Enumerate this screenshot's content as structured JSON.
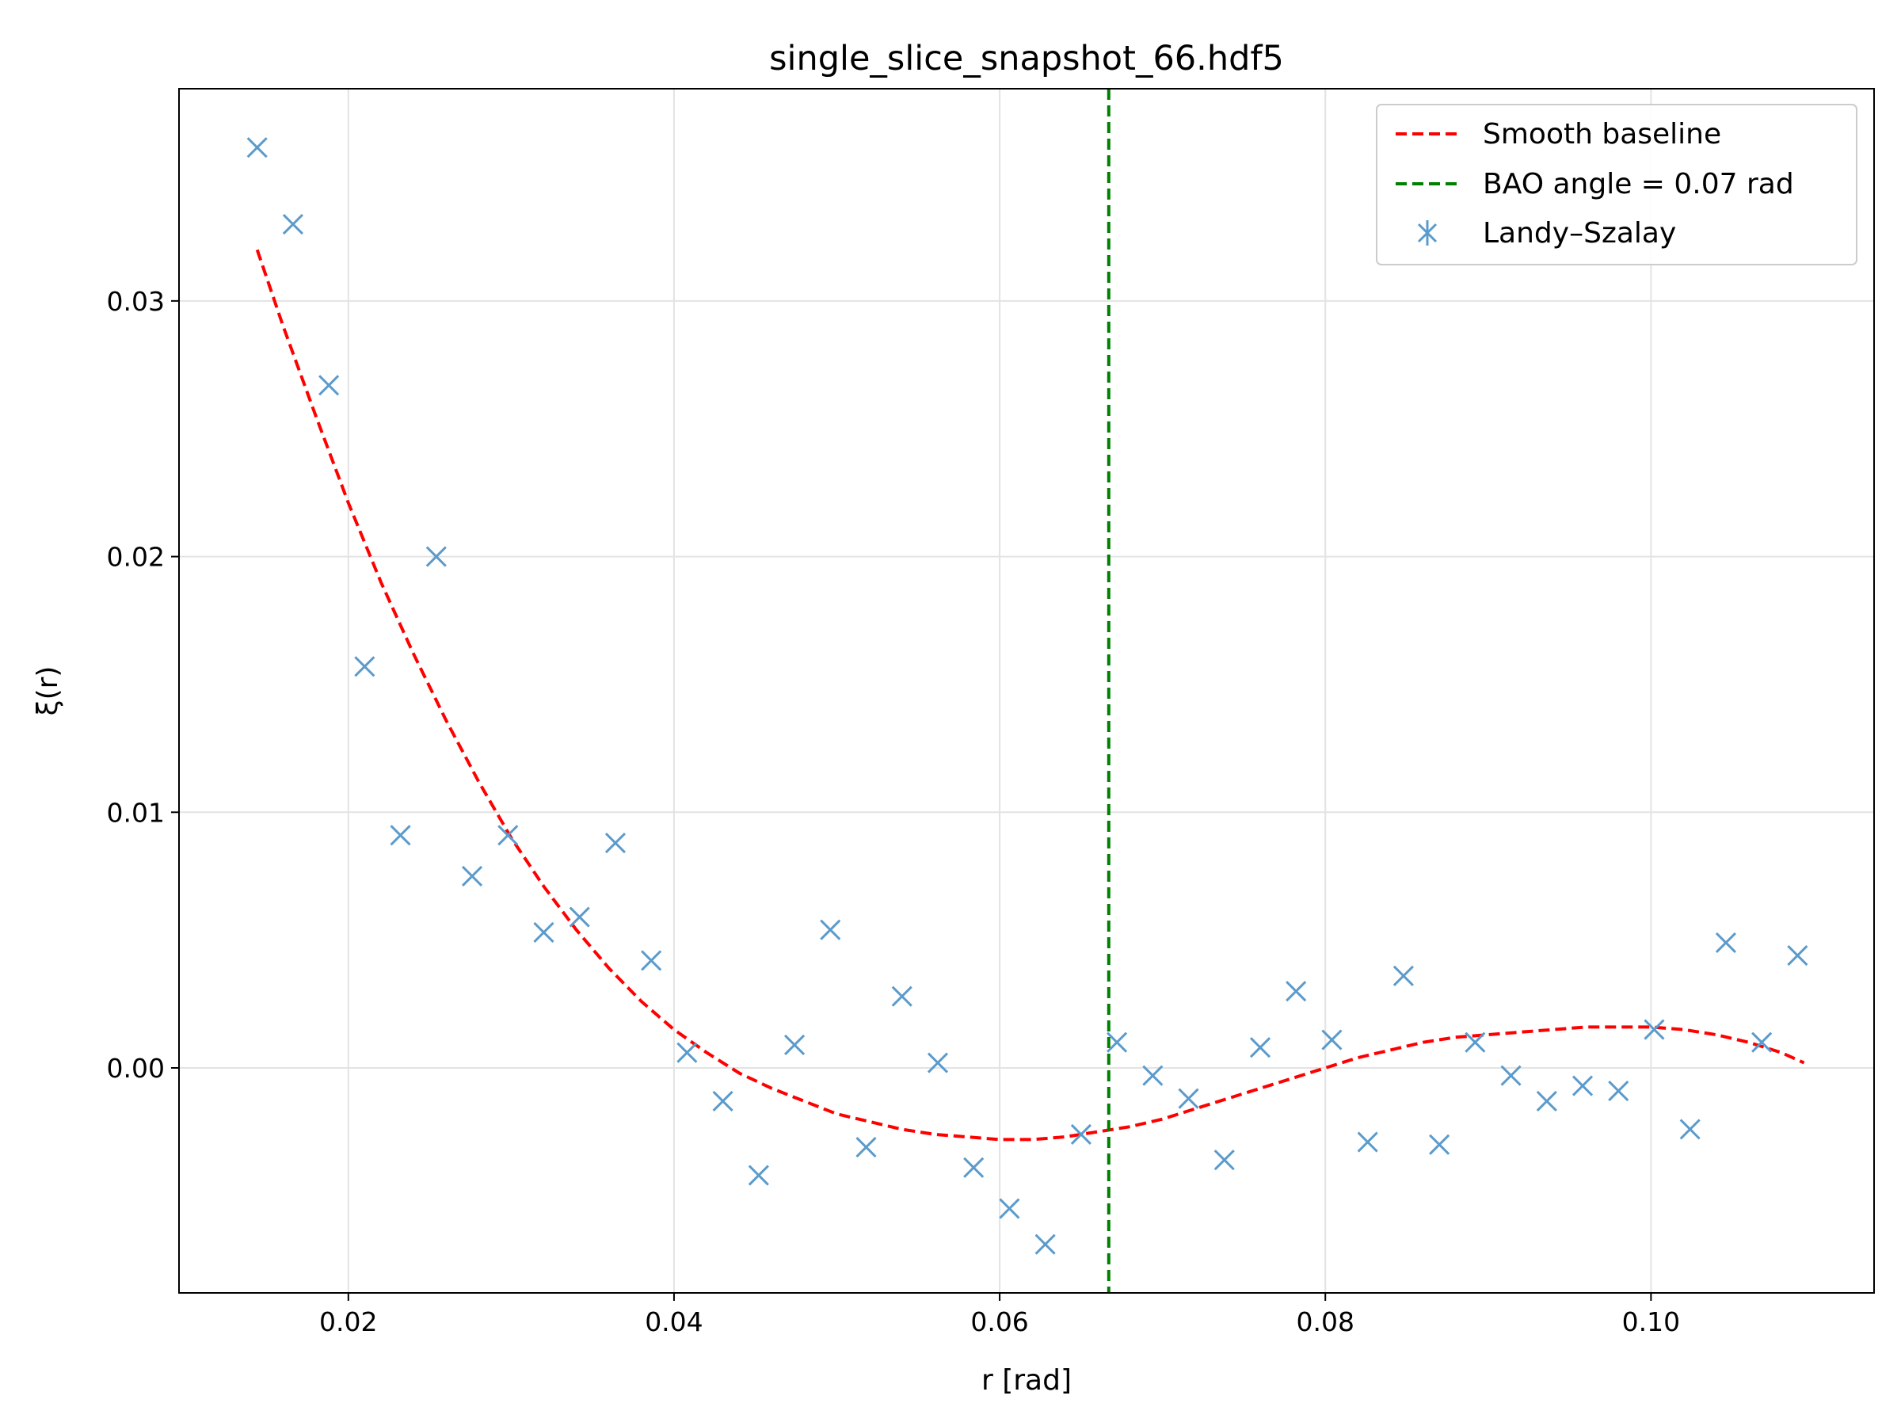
{
  "chart_data": {
    "type": "scatter",
    "title": "single_slice_snapshot_66.hdf5",
    "xlabel": "r [rad]",
    "ylabel": "ξ(r)",
    "xlim": [
      0.0096,
      0.1137
    ],
    "ylim": [
      -0.0088,
      0.0383
    ],
    "xticks": [
      0.02,
      0.04,
      0.06,
      0.08,
      0.1
    ],
    "xtick_labels": [
      "0.02",
      "0.04",
      "0.06",
      "0.08",
      "0.10"
    ],
    "yticks": [
      0.0,
      0.01,
      0.02,
      0.03
    ],
    "ytick_labels": [
      "0.00",
      "0.01",
      "0.02",
      "0.03"
    ],
    "grid": true,
    "legend_position": "top-right",
    "colors": {
      "points": "#5b9bcc",
      "baseline": "#ff0000",
      "bao": "#008000"
    },
    "series": [
      {
        "name": "Landy–Szalay",
        "kind": "scatter",
        "x": [
          0.0144,
          0.0166,
          0.0188,
          0.021,
          0.0232,
          0.0254,
          0.0276,
          0.0298,
          0.032,
          0.0342,
          0.0364,
          0.0386,
          0.0408,
          0.043,
          0.0452,
          0.0474,
          0.0496,
          0.0518,
          0.054,
          0.0562,
          0.0584,
          0.0606,
          0.0628,
          0.065,
          0.0672,
          0.0694,
          0.0716,
          0.0738,
          0.076,
          0.0782,
          0.0804,
          0.0826,
          0.0848,
          0.087,
          0.0892,
          0.0914,
          0.0936,
          0.0958,
          0.098,
          0.1002,
          0.1024,
          0.1046,
          0.1068,
          0.109
        ],
        "y": [
          0.036,
          0.033,
          0.0267,
          0.0157,
          0.0091,
          0.02,
          0.0075,
          0.0091,
          0.0053,
          0.0059,
          0.0088,
          0.0042,
          0.0006,
          -0.0013,
          -0.0042,
          0.0009,
          0.0054,
          -0.0031,
          0.0028,
          0.0002,
          -0.0039,
          -0.0055,
          -0.0069,
          -0.0026,
          0.001,
          -0.0003,
          -0.0012,
          -0.0036,
          0.0008,
          0.003,
          0.0011,
          -0.0029,
          0.0036,
          -0.003,
          0.001,
          -0.0003,
          -0.0013,
          -0.0007,
          -0.0009,
          0.0015,
          -0.0024,
          0.0049,
          0.001,
          0.0044
        ]
      },
      {
        "name": "Smooth baseline",
        "kind": "line",
        "style": "dashed",
        "x": [
          0.0144,
          0.016,
          0.018,
          0.02,
          0.022,
          0.024,
          0.026,
          0.028,
          0.03,
          0.032,
          0.034,
          0.036,
          0.038,
          0.04,
          0.042,
          0.044,
          0.046,
          0.048,
          0.05,
          0.052,
          0.054,
          0.056,
          0.058,
          0.06,
          0.062,
          0.064,
          0.066,
          0.068,
          0.07,
          0.072,
          0.074,
          0.076,
          0.078,
          0.08,
          0.082,
          0.084,
          0.086,
          0.088,
          0.09,
          0.092,
          0.094,
          0.096,
          0.098,
          0.1,
          0.102,
          0.104,
          0.106,
          0.108,
          0.1094
        ],
        "y": [
          0.032,
          0.029,
          0.0255,
          0.0221,
          0.019,
          0.0162,
          0.0136,
          0.0112,
          0.009,
          0.0071,
          0.0054,
          0.0039,
          0.0026,
          0.0015,
          0.0006,
          -0.0002,
          -0.0008,
          -0.0013,
          -0.0018,
          -0.0021,
          -0.0024,
          -0.0026,
          -0.0027,
          -0.0028,
          -0.0028,
          -0.0027,
          -0.0025,
          -0.0023,
          -0.002,
          -0.0016,
          -0.0012,
          -0.0008,
          -0.0004,
          0.0,
          0.0004,
          0.0007,
          0.001,
          0.0012,
          0.0013,
          0.0014,
          0.0015,
          0.0016,
          0.0016,
          0.0016,
          0.0015,
          0.0013,
          0.001,
          0.0006,
          0.0002
        ]
      },
      {
        "name": "BAO angle = 0.07 rad",
        "kind": "vline",
        "style": "dashed",
        "x": 0.0667
      }
    ]
  }
}
